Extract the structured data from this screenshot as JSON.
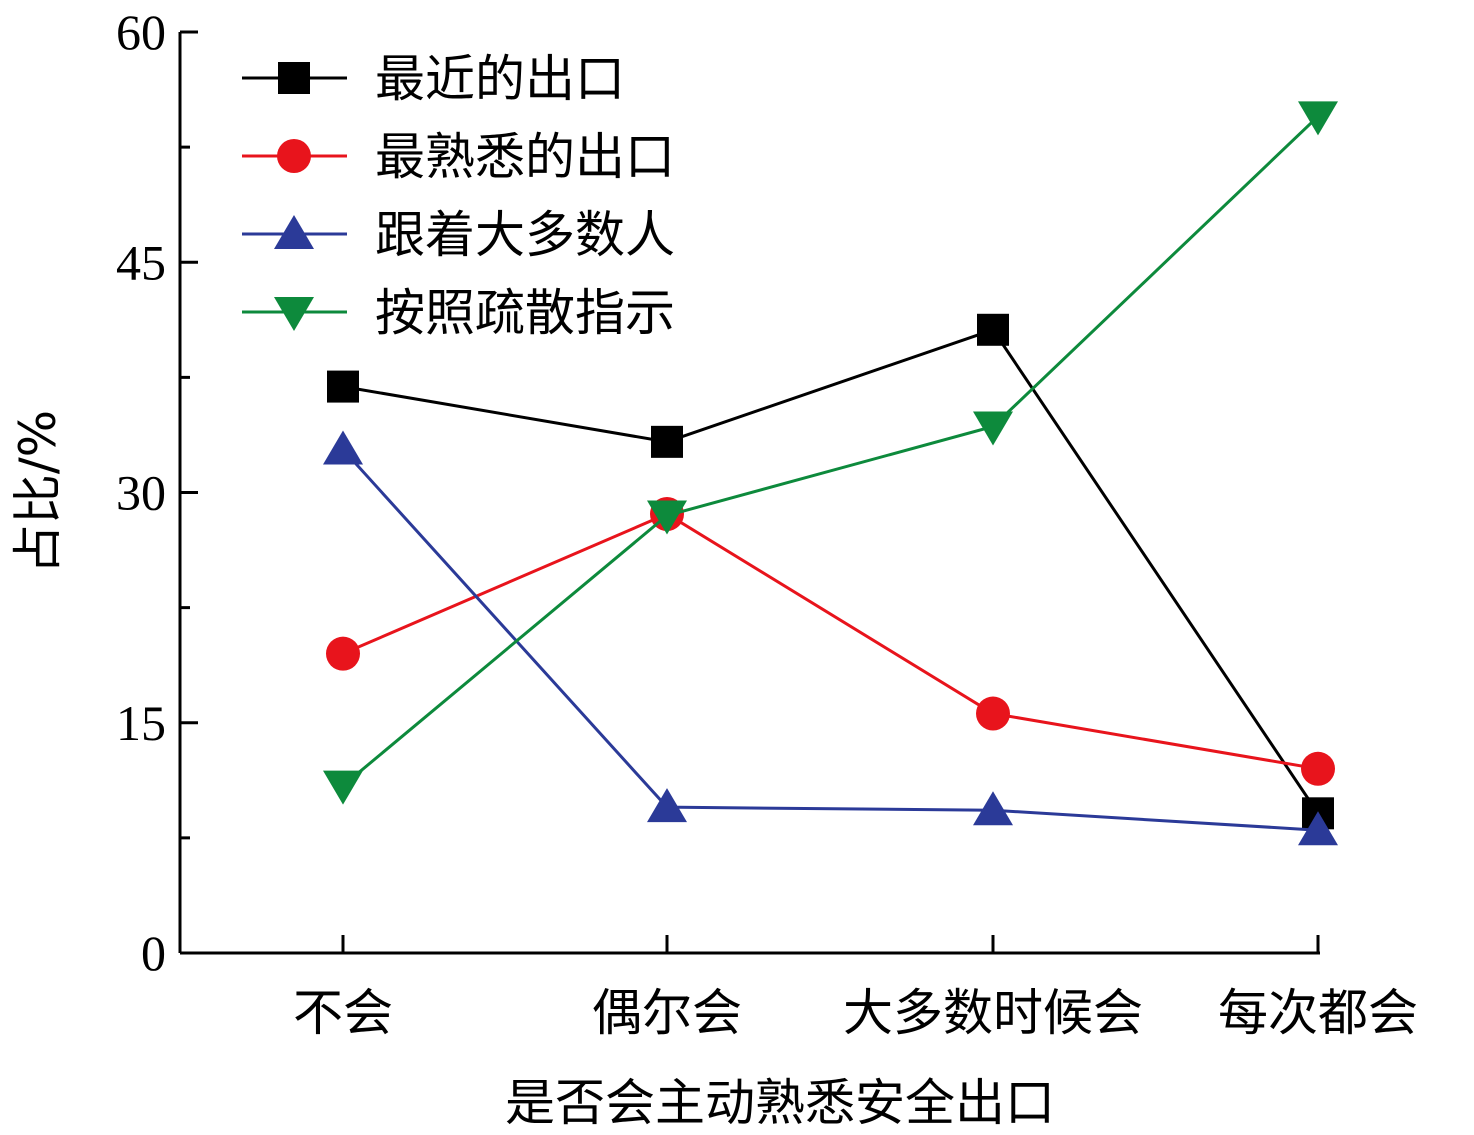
{
  "chart_data": {
    "type": "line",
    "title": "",
    "xlabel": "是否会主动熟悉安全出口",
    "ylabel": "占比/%",
    "categories": [
      "不会",
      "偶尔会",
      "大多数时候会",
      "每次都会"
    ],
    "ylim": [
      0,
      60
    ],
    "yticks": [
      0,
      15,
      30,
      45,
      60
    ],
    "grid": false,
    "legend_position": "top-left",
    "series": [
      {
        "name": "最近的出口",
        "values": [
          36.9,
          33.3,
          40.6,
          9.1
        ],
        "color": "#000000",
        "marker": "square"
      },
      {
        "name": "最熟悉的出口",
        "values": [
          19.5,
          28.6,
          15.6,
          12.0
        ],
        "color": "#e8141c",
        "marker": "circle"
      },
      {
        "name": "跟着大多数人",
        "values": [
          32.8,
          9.5,
          9.3,
          8.0
        ],
        "color": "#2b3a98",
        "marker": "triangle-up"
      },
      {
        "name": "按照疏散指示",
        "values": [
          10.9,
          28.5,
          34.3,
          54.5
        ],
        "color": "#0d8a3c",
        "marker": "triangle-down"
      }
    ]
  }
}
